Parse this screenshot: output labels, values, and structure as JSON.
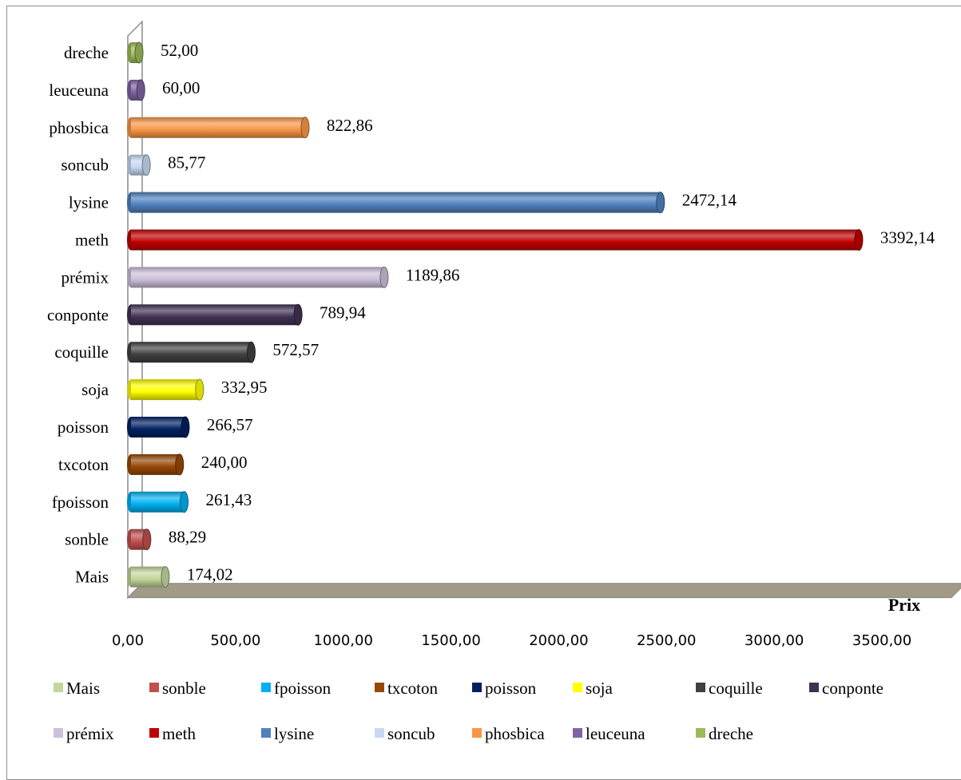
{
  "chart_data": {
    "type": "bar",
    "orientation": "horizontal",
    "style": "3d-cylinder",
    "categories": [
      "Mais",
      "sonble",
      "fpoisson",
      "txcoton",
      "poisson",
      "soja",
      "coquille",
      "conponte",
      "prémix",
      "meth",
      "lysine",
      "soncub",
      "phosbica",
      "leuceuna",
      "dreche"
    ],
    "values": [
      174.02,
      88.29,
      261.43,
      240.0,
      266.57,
      332.95,
      572.57,
      789.94,
      1189.86,
      3392.14,
      2472.14,
      85.77,
      822.86,
      60.0,
      52.0
    ],
    "value_labels": [
      "174,02",
      "88,29",
      "261,43",
      "240,00",
      "266,57",
      "332,95",
      "572,57",
      "789,94",
      "1189,86",
      "3392,14",
      "2472,14",
      "85,77",
      "822,86",
      "60,00",
      "52,00"
    ],
    "colors": [
      "#c3d69b",
      "#c0504d",
      "#00b0f0",
      "#974806",
      "#002060",
      "#ffff00",
      "#404040",
      "#403152",
      "#ccc0da",
      "#c00000",
      "#4f81bd",
      "#c6d9f1",
      "#f79646",
      "#8064a2",
      "#9bbb59"
    ],
    "xlim": [
      0,
      3500
    ],
    "x_ticks": [
      0,
      500,
      1000,
      1500,
      2000,
      2500,
      3000,
      3500
    ],
    "x_tick_labels": [
      "0,00",
      "500,00",
      "1000,00",
      "1500,00",
      "2000,00",
      "2500,00",
      "3000,00",
      "3500,00"
    ],
    "xlabel": "Prix",
    "ylabel": "",
    "title": "",
    "grid": false,
    "legend_position": "bottom",
    "legend": [
      "Mais",
      "sonble",
      "fpoisson",
      "txcoton",
      "poisson",
      "soja",
      "coquille",
      "conponte",
      "prémix",
      "meth",
      "lysine",
      "soncub",
      "phosbica",
      "leuceuna",
      "dreche"
    ]
  }
}
